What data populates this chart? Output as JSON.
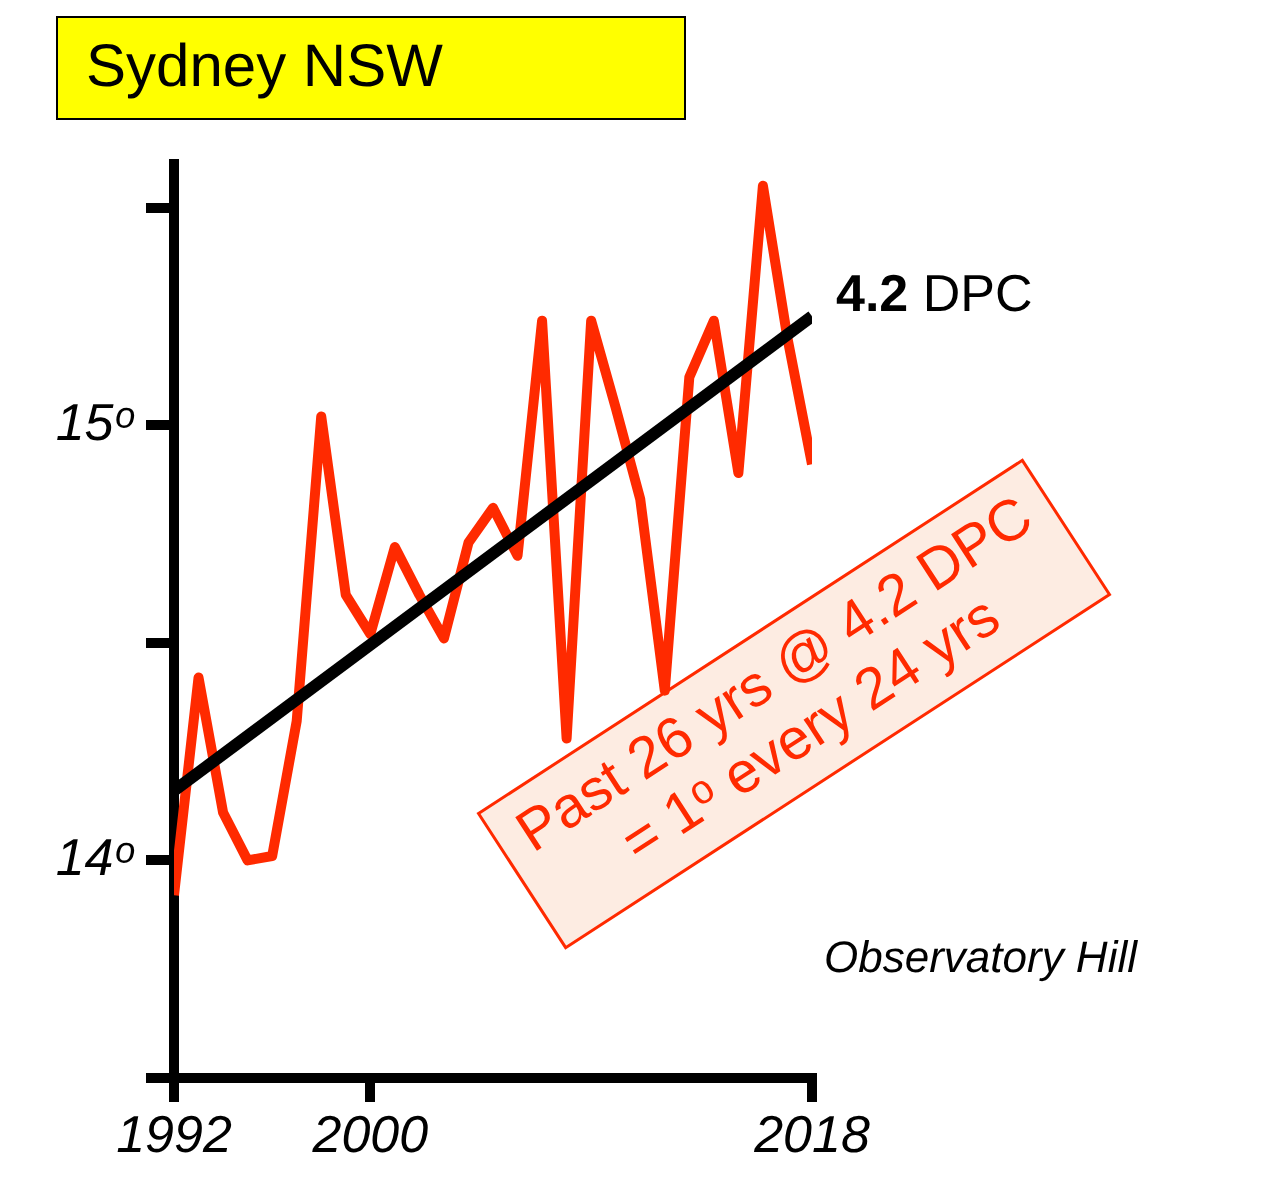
{
  "chart_data": {
    "type": "line",
    "title": "Sydney NSW",
    "x": [
      1992,
      1993,
      1994,
      1995,
      1996,
      1997,
      1998,
      1999,
      2000,
      2001,
      2002,
      2003,
      2004,
      2005,
      2006,
      2007,
      2008,
      2009,
      2010,
      2011,
      2012,
      2013,
      2014,
      2015,
      2016,
      2017,
      2018
    ],
    "xlim": [
      1992,
      2018
    ],
    "xticks": [
      1992,
      2000,
      2018
    ],
    "ylim": [
      13.5,
      15.6
    ],
    "yticks": [
      {
        "value": 13.5,
        "label": null
      },
      {
        "value": 14,
        "label": "14ᵒ"
      },
      {
        "value": 14.5,
        "label": null
      },
      {
        "value": 15,
        "label": "15ᵒ"
      },
      {
        "value": 15.5,
        "label": null
      }
    ],
    "series": [
      {
        "color": "#ff2a00",
        "values": [
          13.92,
          14.42,
          14.11,
          14.0,
          14.01,
          14.32,
          15.02,
          14.61,
          14.52,
          14.72,
          14.61,
          14.51,
          14.73,
          14.81,
          14.7,
          15.24,
          14.28,
          15.24,
          15.04,
          14.83,
          14.39,
          15.11,
          15.24,
          14.89,
          15.55,
          15.2,
          14.91
        ]
      },
      {
        "name": "4.2 DPC",
        "color": "#000000",
        "x": [
          1992,
          2018
        ],
        "values": [
          14.16,
          15.25
        ]
      }
    ],
    "annotations": [
      "Past 26 yrs @ 4.2 DPC\n= 1ᵒ every 24 yrs",
      "Observatory Hill"
    ]
  }
}
